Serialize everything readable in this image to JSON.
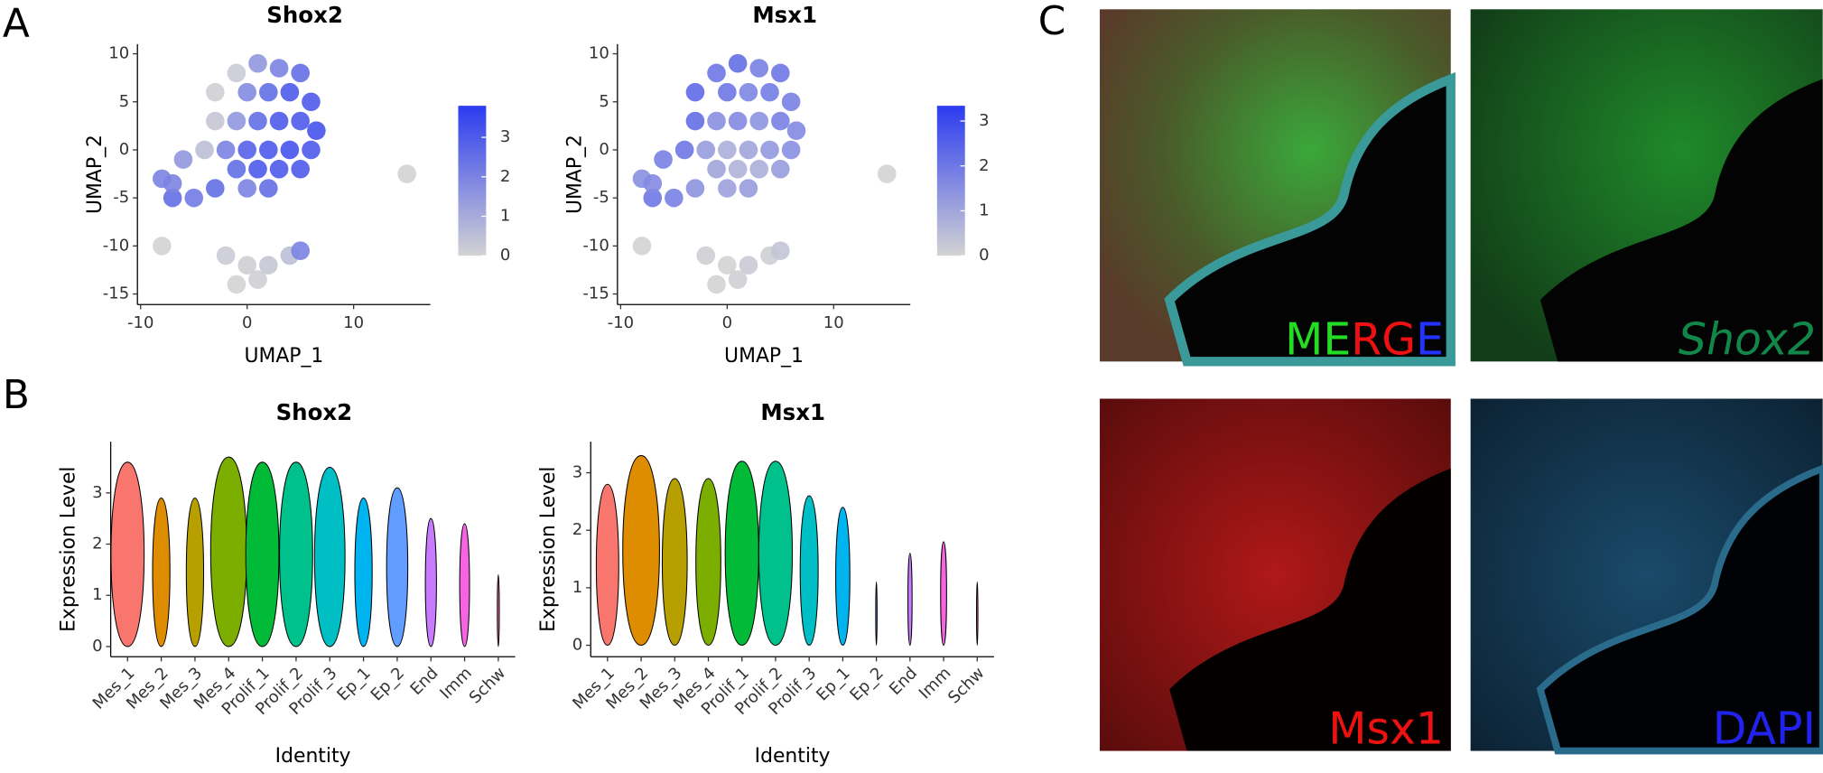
{
  "panel_labels": [
    "A",
    "B",
    "C"
  ],
  "chart_data": [
    {
      "type": "scatter",
      "title": "Shox2",
      "x_label": "UMAP_1",
      "y_label": "UMAP_2",
      "xlim": [
        -10.3,
        17.2
      ],
      "ylim": [
        -16.1,
        11
      ],
      "xticks": [
        -10,
        0,
        10
      ],
      "yticks": [
        -15,
        -10,
        -5,
        0,
        5,
        10
      ],
      "color_low": "#d3d3d3",
      "color_high": "#2b3bf0",
      "cblim": [
        0,
        3.8
      ],
      "cbticks": [
        0,
        1,
        2,
        3
      ],
      "x": [
        -1,
        1,
        3,
        5,
        -3,
        0,
        2,
        4,
        6,
        -3,
        -1,
        1,
        3,
        5,
        6.5,
        -4,
        -2,
        0,
        2,
        4,
        6,
        -6,
        -1,
        1,
        3,
        5,
        -8,
        -7,
        -5,
        -3,
        0,
        2,
        -7,
        -2,
        0,
        2,
        4,
        -1,
        1,
        5,
        15,
        -8
      ],
      "y": [
        8,
        9,
        8.5,
        8,
        6,
        6,
        6,
        6,
        5,
        3,
        3,
        3,
        3,
        3,
        2,
        0,
        0,
        0,
        0,
        0,
        0,
        -1,
        -2,
        -2,
        -2,
        -2,
        -3,
        -5,
        -5,
        -4,
        -4,
        -4,
        -3.5,
        -11,
        -12,
        -12,
        -11,
        -14,
        -13.5,
        -10.5,
        -2.5,
        -10
      ],
      "expression": [
        0.2,
        1.5,
        2,
        2.5,
        0.1,
        1.8,
        2.5,
        3,
        3,
        0.3,
        1.5,
        2.5,
        3,
        3,
        3.2,
        0.5,
        2,
        2.8,
        3,
        3.2,
        3,
        1.5,
        2.5,
        3,
        3,
        3,
        2,
        2.5,
        2.2,
        2.5,
        2,
        2.5,
        2,
        0.2,
        0.1,
        0.3,
        0.5,
        0,
        0.1,
        2,
        0,
        0
      ]
    },
    {
      "type": "scatter",
      "title": "Msx1",
      "x_label": "UMAP_1",
      "y_label": "UMAP_2",
      "xlim": [
        -10.3,
        17.2
      ],
      "ylim": [
        -16.1,
        11
      ],
      "xticks": [
        -10,
        0,
        10
      ],
      "yticks": [
        -15,
        -10,
        -5,
        0,
        5,
        10
      ],
      "color_low": "#d3d3d3",
      "color_high": "#2b3bf0",
      "cblim": [
        0,
        3.34
      ],
      "cbticks": [
        0,
        1,
        2,
        3
      ],
      "x": [
        -1,
        1,
        3,
        5,
        -3,
        0,
        2,
        4,
        6,
        -3,
        -1,
        1,
        3,
        5,
        6.5,
        -4,
        -2,
        0,
        2,
        4,
        6,
        -6,
        -1,
        1,
        3,
        5,
        -8,
        -7,
        -5,
        -3,
        0,
        2,
        -7,
        -2,
        0,
        2,
        4,
        -1,
        1,
        5,
        15,
        -8
      ],
      "y": [
        8,
        9,
        8.5,
        8,
        6,
        6,
        6,
        6,
        5,
        3,
        3,
        3,
        3,
        3,
        2,
        0,
        0,
        0,
        0,
        0,
        0,
        -1,
        -2,
        -2,
        -2,
        -2,
        -3,
        -5,
        -5,
        -4,
        -4,
        -4,
        -3.5,
        -11,
        -12,
        -12,
        -11,
        -14,
        -13.5,
        -10.5,
        -2.5,
        -10
      ],
      "expression": [
        2,
        2.2,
        1.8,
        2,
        2.3,
        2,
        1.7,
        1.9,
        1.8,
        2.2,
        1.5,
        1.6,
        1.4,
        1.8,
        1.6,
        2,
        1.2,
        0.8,
        1,
        1.3,
        1.5,
        1.8,
        1,
        0.7,
        0.8,
        1.2,
        1.5,
        2,
        1.8,
        1.4,
        1.1,
        1.2,
        1.6,
        0.1,
        0,
        0.2,
        0.1,
        0,
        0.1,
        0.3,
        0,
        0
      ]
    },
    {
      "type": "violin",
      "title": "Shox2",
      "x_label": "Identity",
      "y_label": "Expression Level",
      "ylim": [
        -0.2,
        4.0
      ],
      "yticks": [
        0,
        1,
        2,
        3
      ],
      "categories": [
        "Mes_1",
        "Mes_2",
        "Mes_3",
        "Mes_4",
        "Prolif_1",
        "Prolif_2",
        "Prolif_3",
        "Ep_1",
        "Ep_2",
        "End",
        "Imm",
        "Schw"
      ],
      "colors": [
        "#f8766d",
        "#de8c00",
        "#b79f00",
        "#7cae00",
        "#00ba38",
        "#00c08b",
        "#00bfc4",
        "#00b4f0",
        "#619cff",
        "#c77cff",
        "#f564e3",
        "#ff64b0"
      ],
      "values": [
        3.6,
        2.9,
        2.9,
        3.7,
        3.6,
        3.6,
        3.5,
        2.9,
        3.1,
        2.5,
        2.4,
        1.4
      ]
    },
    {
      "type": "violin",
      "title": "Msx1",
      "x_label": "Identity",
      "y_label": "Expression Level",
      "ylim": [
        -0.2,
        3.54
      ],
      "yticks": [
        0,
        1,
        2,
        3
      ],
      "categories": [
        "Mes_1",
        "Mes_2",
        "Mes_3",
        "Mes_4",
        "Prolif_1",
        "Prolif_2",
        "Prolif_3",
        "Ep_1",
        "Ep_2",
        "End",
        "Imm",
        "Schw"
      ],
      "colors": [
        "#f8766d",
        "#de8c00",
        "#b79f00",
        "#7cae00",
        "#00ba38",
        "#00c08b",
        "#00bfc4",
        "#00b4f0",
        "#619cff",
        "#c77cff",
        "#f564e3",
        "#ff64b0"
      ],
      "values": [
        2.8,
        3.3,
        2.9,
        2.9,
        3.2,
        3.2,
        2.6,
        2.4,
        1.1,
        1.6,
        1.8,
        1.1
      ]
    }
  ],
  "images": [
    {
      "label_parts": [
        {
          "text": "ME",
          "color": "#22dd22"
        },
        {
          "text": "RG",
          "color": "#ee1111"
        },
        {
          "text": "E",
          "color": "#2233ff"
        }
      ]
    },
    {
      "label_parts": [
        {
          "text": "Shox2",
          "color": "#11884a"
        }
      ]
    },
    {
      "label_parts": [
        {
          "text": "Msx1",
          "color": "#ee1111"
        }
      ]
    },
    {
      "label_parts": [
        {
          "text": "DAPI",
          "color": "#2222ee"
        }
      ]
    }
  ]
}
